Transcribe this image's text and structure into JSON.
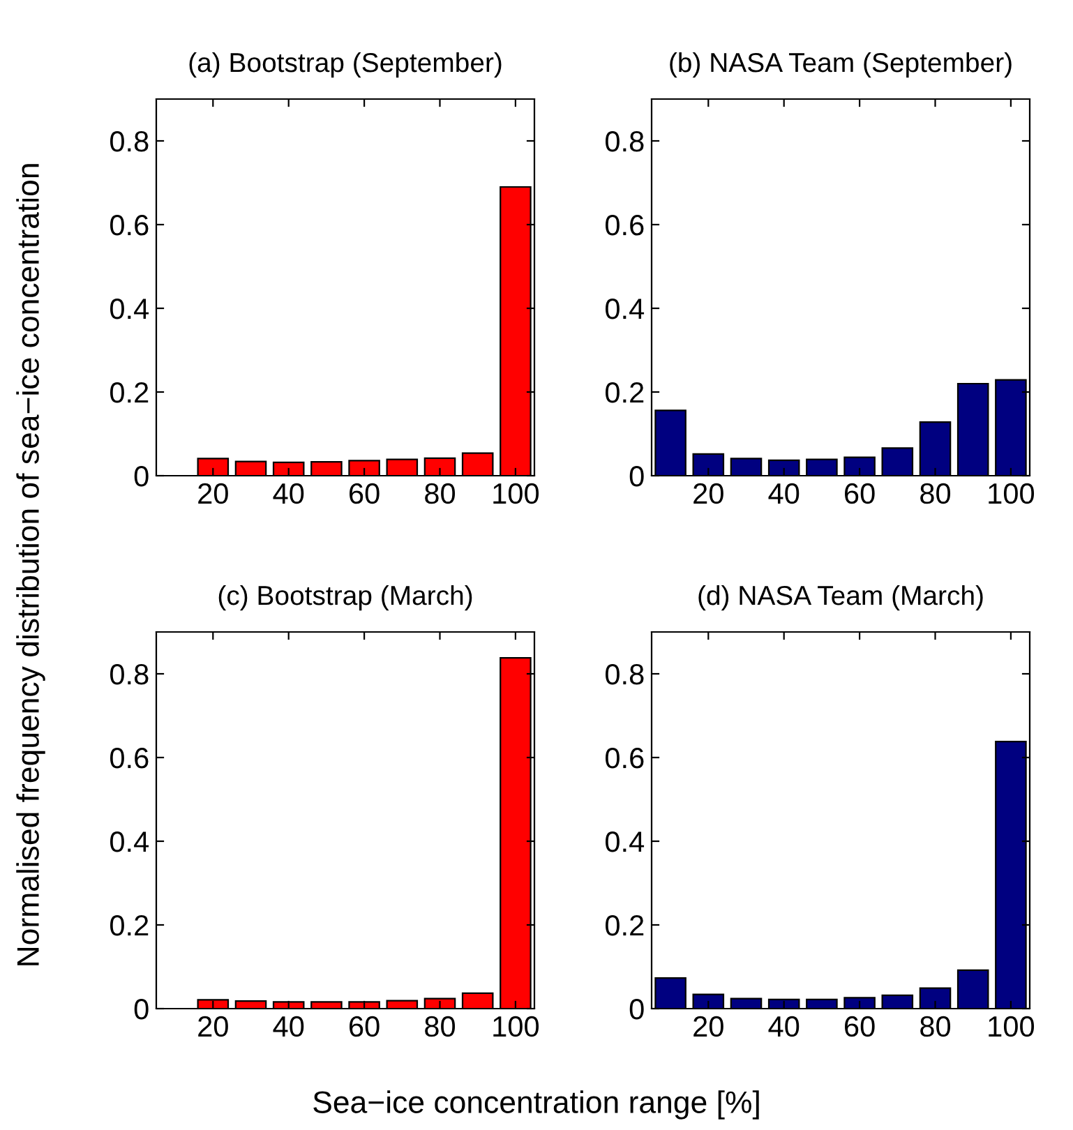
{
  "chart_data": [
    {
      "type": "bar",
      "title": "(a) Bootstrap (September)",
      "ylabel": "Normalised frequency distribution of sea−ice concentration",
      "x": [
        10,
        20,
        30,
        40,
        50,
        60,
        70,
        80,
        90,
        100
      ],
      "series": [
        {
          "color": "#ff0000",
          "values": [
            0,
            0.041,
            0.034,
            0.032,
            0.033,
            0.036,
            0.039,
            0.042,
            0.054,
            0.69
          ]
        }
      ],
      "xlim": [
        5,
        105
      ],
      "xticks": [
        20,
        40,
        60,
        80,
        100
      ],
      "ylim": [
        0,
        0.9
      ],
      "yticks": [
        0,
        0.2,
        0.4,
        0.6,
        0.8
      ],
      "grid": false,
      "legend": false
    },
    {
      "type": "bar",
      "title": "(b) NASA Team (September)",
      "x": [
        10,
        20,
        30,
        40,
        50,
        60,
        70,
        80,
        90,
        100
      ],
      "series": [
        {
          "color": "#000080",
          "values": [
            0.156,
            0.052,
            0.041,
            0.037,
            0.039,
            0.044,
            0.066,
            0.128,
            0.22,
            0.229
          ]
        }
      ],
      "xlim": [
        5,
        105
      ],
      "xticks": [
        20,
        40,
        60,
        80,
        100
      ],
      "ylim": [
        0,
        0.9
      ],
      "yticks": [
        0,
        0.2,
        0.4,
        0.6,
        0.8
      ],
      "grid": false,
      "legend": false
    },
    {
      "type": "bar",
      "title": "(c) Bootstrap (March)",
      "xlabel": "Sea−ice concentration range [%]",
      "x": [
        10,
        20,
        30,
        40,
        50,
        60,
        70,
        80,
        90,
        100
      ],
      "series": [
        {
          "color": "#ff0000",
          "values": [
            0,
            0.021,
            0.018,
            0.016,
            0.016,
            0.016,
            0.019,
            0.024,
            0.037,
            0.838
          ]
        }
      ],
      "xlim": [
        5,
        105
      ],
      "xticks": [
        20,
        40,
        60,
        80,
        100
      ],
      "ylim": [
        0,
        0.9
      ],
      "yticks": [
        0,
        0.2,
        0.4,
        0.6,
        0.8
      ],
      "grid": false,
      "legend": false
    },
    {
      "type": "bar",
      "title": "(d) NASA Team (March)",
      "x": [
        10,
        20,
        30,
        40,
        50,
        60,
        70,
        80,
        90,
        100
      ],
      "series": [
        {
          "color": "#000080",
          "values": [
            0.073,
            0.034,
            0.024,
            0.022,
            0.022,
            0.026,
            0.032,
            0.049,
            0.092,
            0.638
          ]
        }
      ],
      "xlim": [
        5,
        105
      ],
      "xticks": [
        20,
        40,
        60,
        80,
        100
      ],
      "ylim": [
        0,
        0.9
      ],
      "yticks": [
        0,
        0.2,
        0.4,
        0.6,
        0.8
      ],
      "grid": false,
      "legend": false
    }
  ]
}
